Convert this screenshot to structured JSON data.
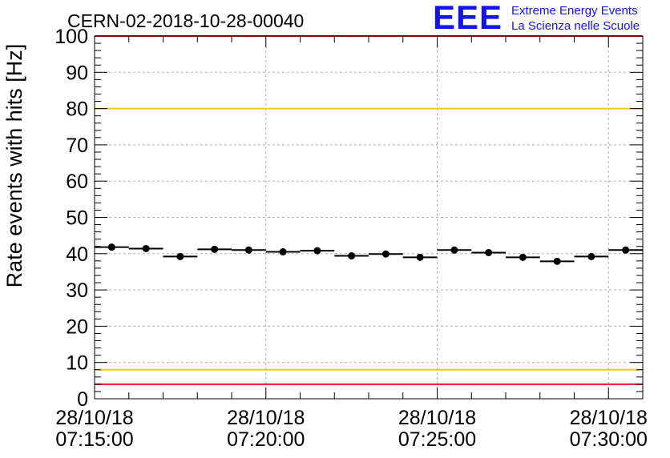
{
  "logo": {
    "mark": "EEE",
    "line1": "Extreme Energy Events",
    "line2": "La Scienza nelle Scuole"
  },
  "colors": {
    "limit_red": "#e8151b",
    "limit_yellow": "#f2c81a",
    "grid": "#b0b0b0",
    "brand_blue": "#1414e6"
  },
  "chart_data": {
    "type": "scatter",
    "title": "CERN-02-2018-10-28-00040",
    "ylabel": "Rate events with hits [Hz]",
    "xlabel": "",
    "xlim": [
      -0.5,
      15.5
    ],
    "ylim": [
      0,
      100
    ],
    "y_ticks": [
      0,
      10,
      20,
      30,
      40,
      50,
      60,
      70,
      80,
      90,
      100
    ],
    "x_ticks": [
      {
        "at": -0.5,
        "date": "28/10/18",
        "time": "07:15:00"
      },
      {
        "at": 4.5,
        "date": "28/10/18",
        "time": "07:20:00"
      },
      {
        "at": 9.5,
        "date": "28/10/18",
        "time": "07:25:00"
      },
      {
        "at": 14.5,
        "date": "28/10/18",
        "time": "07:30:00"
      }
    ],
    "bin_width_minutes": 1,
    "x": [
      0,
      1,
      2,
      3,
      4,
      5,
      6,
      7,
      8,
      9,
      10,
      11,
      12,
      13,
      14,
      15
    ],
    "values": [
      41.8,
      41.4,
      39.2,
      41.2,
      41.0,
      40.5,
      40.8,
      39.4,
      39.9,
      39.0,
      41.0,
      40.3,
      39.0,
      37.9,
      39.2,
      41.0
    ],
    "reference_lines": [
      {
        "name": "upper-red-limit",
        "value": 100,
        "color": "red"
      },
      {
        "name": "upper-yellow-limit",
        "value": 80,
        "color": "yellow"
      },
      {
        "name": "lower-yellow-limit",
        "value": 8,
        "color": "yellow"
      },
      {
        "name": "lower-red-limit",
        "value": 4,
        "color": "red"
      }
    ],
    "grid": true,
    "legend": "none"
  }
}
